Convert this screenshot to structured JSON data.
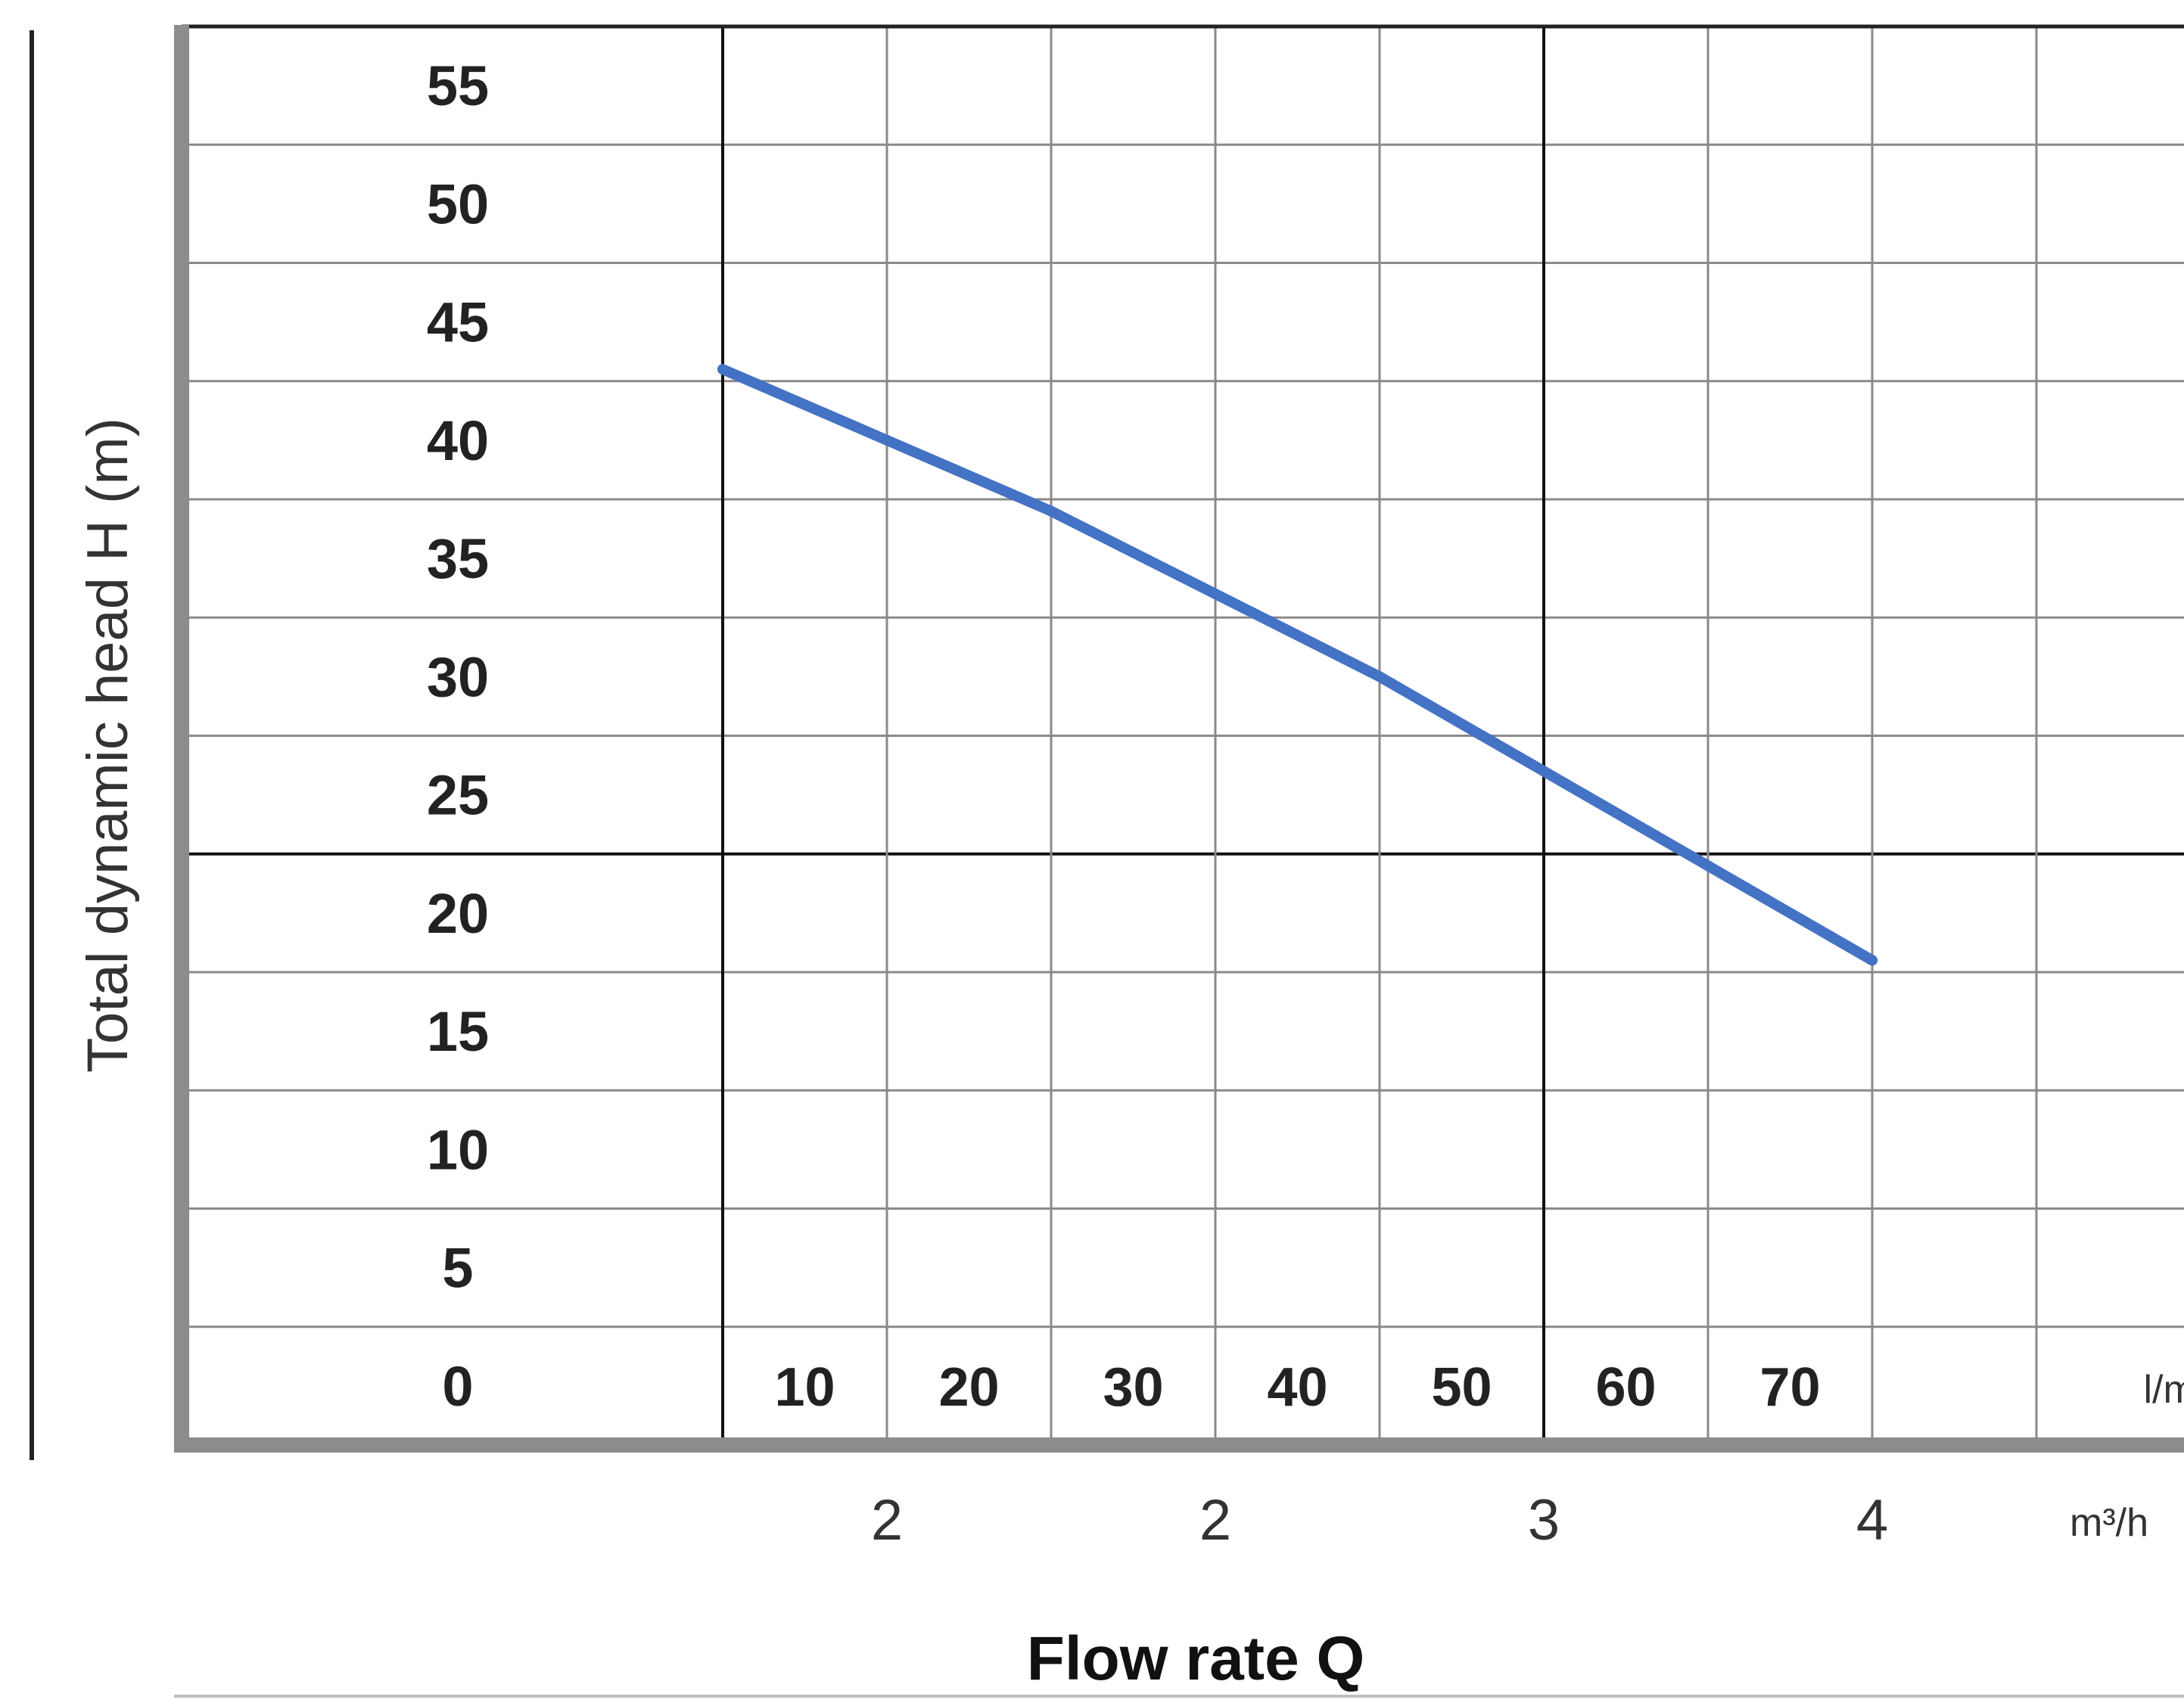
{
  "chart_data": {
    "type": "line",
    "title": "",
    "ylabel": "Total dynamic head H (m)",
    "xlabel": "Flow rate Q",
    "y_ticks": [
      "55",
      "50",
      "45",
      "40",
      "35",
      "30",
      "25",
      "20",
      "15",
      "10",
      "5",
      "0"
    ],
    "x_ticks_lmin": [
      "10",
      "20",
      "30",
      "40",
      "50",
      "60",
      "70"
    ],
    "x_unit_lmin": "l/min",
    "x_ticks_m3h": [
      "2",
      "2",
      "3",
      "4"
    ],
    "x_unit_m3h": "m³/h",
    "ylim": [
      0,
      55
    ],
    "xlim": [
      0,
      80
    ],
    "grid": true,
    "series": [
      {
        "color": "#4472c4",
        "x": [
          0,
          10,
          20,
          30,
          40,
          50,
          60,
          70
        ],
        "y": [
          40.5,
          37.5,
          34.5,
          31,
          27.5,
          23.5,
          19.5,
          15.5
        ]
      }
    ]
  }
}
